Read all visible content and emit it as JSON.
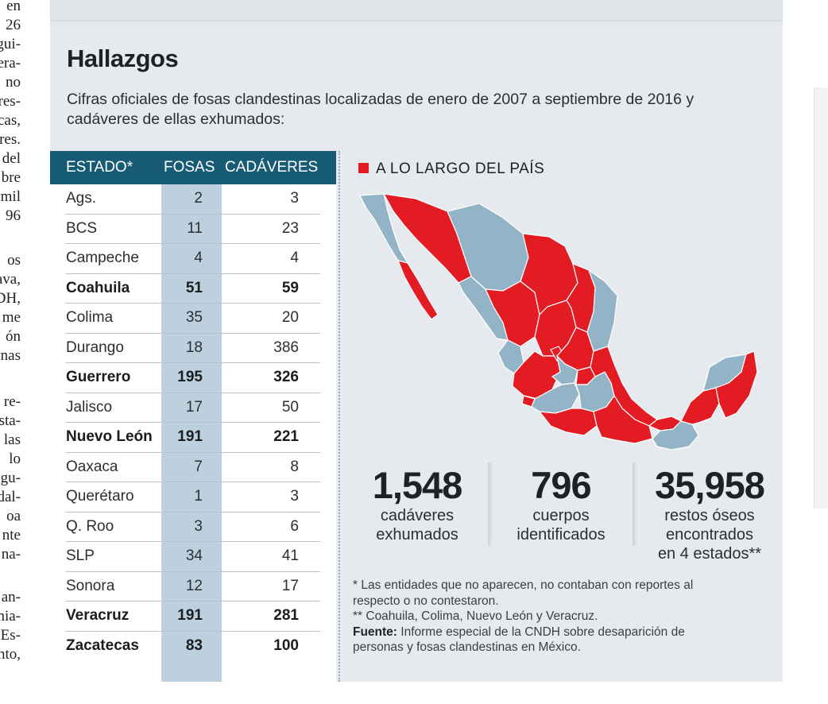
{
  "left_column_fragments": [
    "en",
    "26",
    "gui-",
    "era-",
    "no",
    "res-",
    "cas,",
    "res.",
    "del",
    "bre",
    "mil",
    "96",
    "os",
    "ava,",
    "DH,",
    "me",
    "ón",
    "nas",
    "re-",
    "sta-",
    "las",
    "lo",
    "gu-",
    "dal-",
    "oa",
    "nte",
    "na-",
    "an-",
    "nia-",
    "Es-",
    "nto,"
  ],
  "title": "Hallazgos",
  "subtitle": "Cifras oficiales de fosas clandestinas localizadas de enero de 2007 a septiembre de 2016 y cadáveres de ellas exhumados:",
  "table": {
    "headers": {
      "estado": "ESTADO*",
      "fosas": "FOSAS",
      "cadaveres": "CADÁVERES"
    },
    "rows": [
      {
        "estado": "Ags.",
        "fosas": "2",
        "cadaveres": "3",
        "bold": false
      },
      {
        "estado": "BCS",
        "fosas": "11",
        "cadaveres": "23",
        "bold": false
      },
      {
        "estado": "Campeche",
        "fosas": "4",
        "cadaveres": "4",
        "bold": false
      },
      {
        "estado": "Coahuila",
        "fosas": "51",
        "cadaveres": "59",
        "bold": true
      },
      {
        "estado": "Colima",
        "fosas": "35",
        "cadaveres": "20",
        "bold": false
      },
      {
        "estado": "Durango",
        "fosas": "18",
        "cadaveres": "386",
        "bold": false
      },
      {
        "estado": "Guerrero",
        "fosas": "195",
        "cadaveres": "326",
        "bold": true
      },
      {
        "estado": "Jalisco",
        "fosas": "17",
        "cadaveres": "50",
        "bold": false
      },
      {
        "estado": "Nuevo León",
        "fosas": "191",
        "cadaveres": "221",
        "bold": true
      },
      {
        "estado": "Oaxaca",
        "fosas": "7",
        "cadaveres": "8",
        "bold": false
      },
      {
        "estado": "Querétaro",
        "fosas": "1",
        "cadaveres": "3",
        "bold": false
      },
      {
        "estado": "Q. Roo",
        "fosas": "3",
        "cadaveres": "6",
        "bold": false
      },
      {
        "estado": "SLP",
        "fosas": "34",
        "cadaveres": "41",
        "bold": false
      },
      {
        "estado": "Sonora",
        "fosas": "12",
        "cadaveres": "17",
        "bold": false
      },
      {
        "estado": "Veracruz",
        "fosas": "191",
        "cadaveres": "281",
        "bold": true
      },
      {
        "estado": "Zacatecas",
        "fosas": "83",
        "cadaveres": "100",
        "bold": true
      }
    ]
  },
  "map": {
    "heading": "A LO LARGO DEL PAÍS",
    "highlight_color": "#e31b23",
    "base_color": "#93b4c6"
  },
  "stats": [
    {
      "value": "1,548",
      "label_lines": [
        "cadáveres",
        "exhumados"
      ]
    },
    {
      "value": "796",
      "label_lines": [
        "cuerpos",
        "identificados"
      ]
    },
    {
      "value": "35,958",
      "label_lines": [
        "restos óseos",
        "encontrados",
        "en 4 estados**"
      ]
    }
  ],
  "notes": {
    "note1": "* Las entidades que no aparecen, no contaban con reportes al respecto o no contestaron.",
    "note2": "** Coahuila, Colima, Nuevo León y Veracruz.",
    "source_label": "Fuente:",
    "source_text": "Informe especial de la CNDH sobre desaparición de personas y fosas clandestinas en México."
  }
}
